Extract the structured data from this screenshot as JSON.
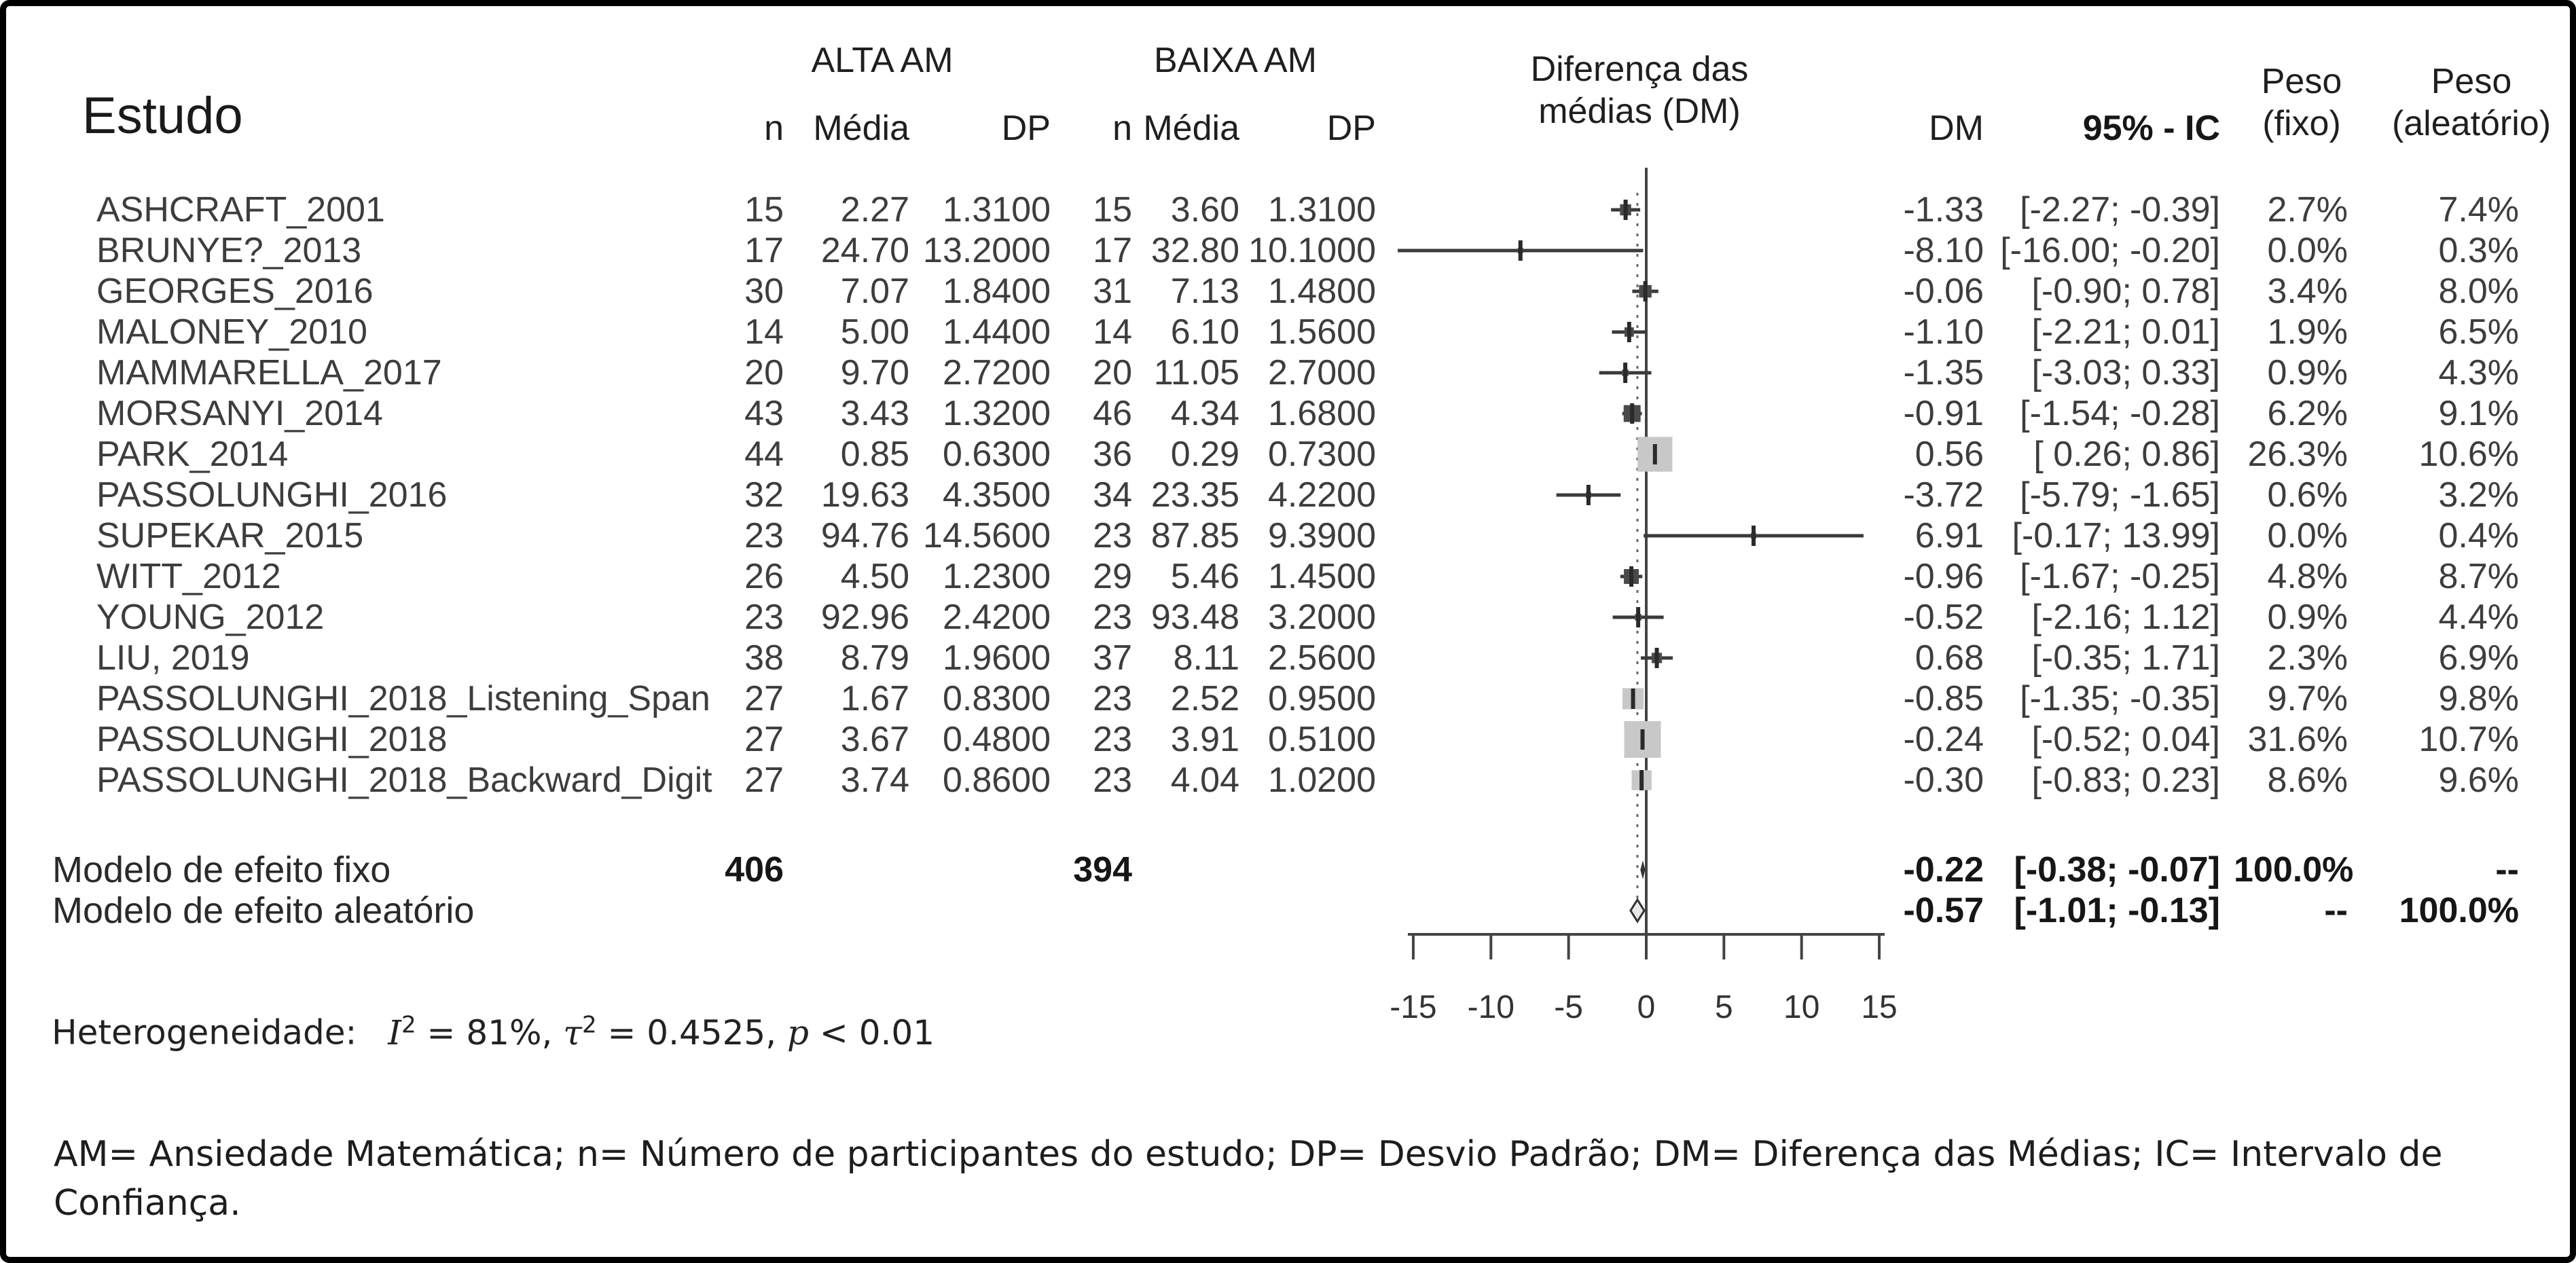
{
  "header": {
    "study_col": "Estudo",
    "group_high": "ALTA AM",
    "group_low": "BAIXA AM",
    "n": "n",
    "mean": "Média",
    "sd": "DP",
    "diff_line1": "Diferença das",
    "diff_line2": "médias (DM)",
    "dm": "DM",
    "ci": "95% - IC",
    "weight_fixed_line1": "Peso",
    "weight_fixed_line2": "(fixo)",
    "weight_random_line1": "Peso",
    "weight_random_line2": "(aleatório)"
  },
  "studies": [
    {
      "name": "ASHCRAFT_2001",
      "n_high": "15",
      "mean_high": "2.27",
      "sd_high": "1.3100",
      "n_low": "15",
      "mean_low": "3.60",
      "sd_low": "1.3100",
      "dm": "-1.33",
      "ci": "[-2.27; -0.39]",
      "w_fixed": "2.7%",
      "w_random": "7.4%"
    },
    {
      "name": "BRUNYE?_2013",
      "n_high": "17",
      "mean_high": "24.70",
      "sd_high": "13.2000",
      "n_low": "17",
      "mean_low": "32.80",
      "sd_low": "10.1000",
      "dm": "-8.10",
      "ci": "[-16.00; -0.20]",
      "w_fixed": "0.0%",
      "w_random": "0.3%"
    },
    {
      "name": "GEORGES_2016",
      "n_high": "30",
      "mean_high": "7.07",
      "sd_high": "1.8400",
      "n_low": "31",
      "mean_low": "7.13",
      "sd_low": "1.4800",
      "dm": "-0.06",
      "ci": "[-0.90; 0.78]",
      "w_fixed": "3.4%",
      "w_random": "8.0%"
    },
    {
      "name": "MALONEY_2010",
      "n_high": "14",
      "mean_high": "5.00",
      "sd_high": "1.4400",
      "n_low": "14",
      "mean_low": "6.10",
      "sd_low": "1.5600",
      "dm": "-1.10",
      "ci": "[-2.21; 0.01]",
      "w_fixed": "1.9%",
      "w_random": "6.5%"
    },
    {
      "name": "MAMMARELLA_2017",
      "n_high": "20",
      "mean_high": "9.70",
      "sd_high": "2.7200",
      "n_low": "20",
      "mean_low": "11.05",
      "sd_low": "2.7000",
      "dm": "-1.35",
      "ci": "[-3.03; 0.33]",
      "w_fixed": "0.9%",
      "w_random": "4.3%"
    },
    {
      "name": "MORSANYI_2014",
      "n_high": "43",
      "mean_high": "3.43",
      "sd_high": "1.3200",
      "n_low": "46",
      "mean_low": "4.34",
      "sd_low": "1.6800",
      "dm": "-0.91",
      "ci": "[-1.54; -0.28]",
      "w_fixed": "6.2%",
      "w_random": "9.1%"
    },
    {
      "name": "PARK_2014",
      "n_high": "44",
      "mean_high": "0.85",
      "sd_high": "0.6300",
      "n_low": "36",
      "mean_low": "0.29",
      "sd_low": "0.7300",
      "dm": "0.56",
      "ci": "[ 0.26; 0.86]",
      "w_fixed": "26.3%",
      "w_random": "10.6%"
    },
    {
      "name": "PASSOLUNGHI_2016",
      "n_high": "32",
      "mean_high": "19.63",
      "sd_high": "4.3500",
      "n_low": "34",
      "mean_low": "23.35",
      "sd_low": "4.2200",
      "dm": "-3.72",
      "ci": "[-5.79; -1.65]",
      "w_fixed": "0.6%",
      "w_random": "3.2%"
    },
    {
      "name": "SUPEKAR_2015",
      "n_high": "23",
      "mean_high": "94.76",
      "sd_high": "14.5600",
      "n_low": "23",
      "mean_low": "87.85",
      "sd_low": "9.3900",
      "dm": "6.91",
      "ci": "[-0.17; 13.99]",
      "w_fixed": "0.0%",
      "w_random": "0.4%"
    },
    {
      "name": "WITT_2012",
      "n_high": "26",
      "mean_high": "4.50",
      "sd_high": "1.2300",
      "n_low": "29",
      "mean_low": "5.46",
      "sd_low": "1.4500",
      "dm": "-0.96",
      "ci": "[-1.67; -0.25]",
      "w_fixed": "4.8%",
      "w_random": "8.7%"
    },
    {
      "name": "YOUNG_2012",
      "n_high": "23",
      "mean_high": "92.96",
      "sd_high": "2.4200",
      "n_low": "23",
      "mean_low": "93.48",
      "sd_low": "3.2000",
      "dm": "-0.52",
      "ci": "[-2.16; 1.12]",
      "w_fixed": "0.9%",
      "w_random": "4.4%"
    },
    {
      "name": "LIU, 2019",
      "n_high": "38",
      "mean_high": "8.79",
      "sd_high": "1.9600",
      "n_low": "37",
      "mean_low": "8.11",
      "sd_low": "2.5600",
      "dm": "0.68",
      "ci": "[-0.35; 1.71]",
      "w_fixed": "2.3%",
      "w_random": "6.9%"
    },
    {
      "name": "PASSOLUNGHI_2018_Listening_Span",
      "n_high": "27",
      "mean_high": "1.67",
      "sd_high": "0.8300",
      "n_low": "23",
      "mean_low": "2.52",
      "sd_low": "0.9500",
      "dm": "-0.85",
      "ci": "[-1.35; -0.35]",
      "w_fixed": "9.7%",
      "w_random": "9.8%"
    },
    {
      "name": "PASSOLUNGHI_2018",
      "n_high": "27",
      "mean_high": "3.67",
      "sd_high": "0.4800",
      "n_low": "23",
      "mean_low": "3.91",
      "sd_low": "0.5100",
      "dm": "-0.24",
      "ci": "[-0.52; 0.04]",
      "w_fixed": "31.6%",
      "w_random": "10.7%"
    },
    {
      "name": "PASSOLUNGHI_2018_Backward_Digit",
      "n_high": "27",
      "mean_high": "3.74",
      "sd_high": "0.8600",
      "n_low": "23",
      "mean_low": "4.04",
      "sd_low": "1.0200",
      "dm": "-0.30",
      "ci": "[-0.83; 0.23]",
      "w_fixed": "8.6%",
      "w_random": "9.6%"
    }
  ],
  "models": {
    "fixed": {
      "label": "Modelo de efeito fixo",
      "n_high": "406",
      "n_low": "394",
      "dm": "-0.22",
      "ci": "[-0.38; -0.07]",
      "w_fixed": "100.0%",
      "w_random": "--"
    },
    "random": {
      "label": "Modelo de efeito aleatório",
      "n_high": "",
      "n_low": "",
      "dm": "-0.57",
      "ci": "[-1.01; -0.13]",
      "w_fixed": "--",
      "w_random": "100.0%"
    }
  },
  "heterogeneity": {
    "label": "Heterogeneidade:",
    "i_sym": "I",
    "i_exp": "2",
    "seg1": " = 81%, ",
    "tau_sym": "τ",
    "tau_exp": "2",
    "seg2": " = 0.4525, ",
    "p_sym": "p",
    "seg3": " < 0.01"
  },
  "footnote": "AM= Ansiedade Matemática; n= Número de participantes do estudo; DP= Desvio Padrão; DM= Diferença das Médias; IC= Intervalo de Confiança.",
  "chart_data": {
    "type": "scatter",
    "subtype": "forest_plot",
    "title": "Meta-análise: ALTA AM vs BAIXA AM (Diferença das médias)",
    "xlabel": "Diferença das médias (DM)",
    "xlim": [
      -15,
      15
    ],
    "x_ticks": [
      -15,
      -10,
      -5,
      0,
      5,
      10,
      15
    ],
    "zero_line": 0,
    "pooled_reference_line": -0.57,
    "studies": [
      {
        "name": "ASHCRAFT_2001",
        "dm": -1.33,
        "lo": -2.27,
        "hi": -0.39,
        "wf": 2.7,
        "wr": 7.4
      },
      {
        "name": "BRUNYE?_2013",
        "dm": -8.1,
        "lo": -16.0,
        "hi": -0.2,
        "wf": 0.0,
        "wr": 0.3
      },
      {
        "name": "GEORGES_2016",
        "dm": -0.06,
        "lo": -0.9,
        "hi": 0.78,
        "wf": 3.4,
        "wr": 8.0
      },
      {
        "name": "MALONEY_2010",
        "dm": -1.1,
        "lo": -2.21,
        "hi": 0.01,
        "wf": 1.9,
        "wr": 6.5
      },
      {
        "name": "MAMMARELLA_2017",
        "dm": -1.35,
        "lo": -3.03,
        "hi": 0.33,
        "wf": 0.9,
        "wr": 4.3
      },
      {
        "name": "MORSANYI_2014",
        "dm": -0.91,
        "lo": -1.54,
        "hi": -0.28,
        "wf": 6.2,
        "wr": 9.1
      },
      {
        "name": "PARK_2014",
        "dm": 0.56,
        "lo": 0.26,
        "hi": 0.86,
        "wf": 26.3,
        "wr": 10.6
      },
      {
        "name": "PASSOLUNGHI_2016",
        "dm": -3.72,
        "lo": -5.79,
        "hi": -1.65,
        "wf": 0.6,
        "wr": 3.2
      },
      {
        "name": "SUPEKAR_2015",
        "dm": 6.91,
        "lo": -0.17,
        "hi": 13.99,
        "wf": 0.0,
        "wr": 0.4
      },
      {
        "name": "WITT_2012",
        "dm": -0.96,
        "lo": -1.67,
        "hi": -0.25,
        "wf": 4.8,
        "wr": 8.7
      },
      {
        "name": "YOUNG_2012",
        "dm": -0.52,
        "lo": -2.16,
        "hi": 1.12,
        "wf": 0.9,
        "wr": 4.4
      },
      {
        "name": "LIU, 2019",
        "dm": 0.68,
        "lo": -0.35,
        "hi": 1.71,
        "wf": 2.3,
        "wr": 6.9
      },
      {
        "name": "PASSOLUNGHI_2018_Listening_Span",
        "dm": -0.85,
        "lo": -1.35,
        "hi": -0.35,
        "wf": 9.7,
        "wr": 9.8
      },
      {
        "name": "PASSOLUNGHI_2018",
        "dm": -0.24,
        "lo": -0.52,
        "hi": 0.04,
        "wf": 31.6,
        "wr": 10.7
      },
      {
        "name": "PASSOLUNGHI_2018_Backward_Digit",
        "dm": -0.3,
        "lo": -0.83,
        "hi": 0.23,
        "wf": 8.6,
        "wr": 9.6
      }
    ],
    "pooled": [
      {
        "model": "fixed",
        "dm": -0.22,
        "lo": -0.38,
        "hi": -0.07
      },
      {
        "model": "random",
        "dm": -0.57,
        "lo": -1.01,
        "hi": -0.13
      }
    ],
    "heterogeneity": {
      "I2_pct": 81,
      "tau2": 0.4525,
      "p": "< 0.01"
    },
    "totals": {
      "n_high": 406,
      "n_low": 394
    },
    "colors": {
      "square_large": "#c8c8c8",
      "square_small": "#4a4a4a",
      "ci_line": "#3a3a3a",
      "axis": "#444444",
      "diamond_fill": "#e8e8e8",
      "diamond_stroke": "#333333"
    }
  }
}
